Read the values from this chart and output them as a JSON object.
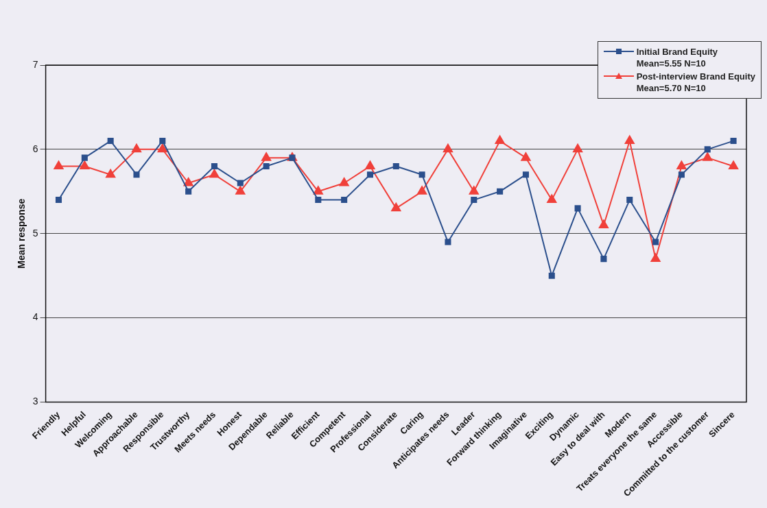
{
  "chart_data": {
    "type": "line",
    "ylabel": "Mean response",
    "categories": [
      "Friendly",
      "Helpful",
      "Welcoming",
      "Approachable",
      "Responsible",
      "Trustworthy",
      "Meets needs",
      "Honest",
      "Dependable",
      "Reliable",
      "Efficient",
      "Competent",
      "Professional",
      "Considerate",
      "Caring",
      "Anticipates needs",
      "Leader",
      "Forward thinking",
      "Imaginative",
      "Exciting",
      "Dynamic",
      "Easy to deal with",
      "Modern",
      "Treats everyone the same",
      "Accessible",
      "Committed to the customer",
      "Sincere"
    ],
    "series": [
      {
        "name": "Initial Brand Equity\nMean=5.55 N=10",
        "color": "#2b4f8c",
        "marker": "square",
        "values": [
          5.4,
          5.9,
          6.1,
          5.7,
          6.1,
          5.5,
          5.8,
          5.6,
          5.8,
          5.9,
          5.4,
          5.4,
          5.7,
          5.8,
          5.7,
          4.9,
          5.4,
          5.5,
          5.7,
          4.5,
          5.3,
          4.7,
          5.4,
          4.9,
          5.7,
          6.0,
          6.1
        ]
      },
      {
        "name": "Post-interview Brand Equity\nMean=5.70 N=10",
        "color": "#f0403a",
        "marker": "triangle",
        "values": [
          5.8,
          5.8,
          5.7,
          6.0,
          6.0,
          5.6,
          5.7,
          5.5,
          5.9,
          5.9,
          5.5,
          5.6,
          5.8,
          5.3,
          5.5,
          6.0,
          5.5,
          6.1,
          5.9,
          5.4,
          6.0,
          5.1,
          6.1,
          4.7,
          5.8,
          5.9,
          5.8
        ]
      }
    ],
    "ylim": [
      3,
      7
    ],
    "yticks": [
      3,
      4,
      5,
      6,
      7
    ],
    "grid": "y",
    "legend": "top right"
  }
}
